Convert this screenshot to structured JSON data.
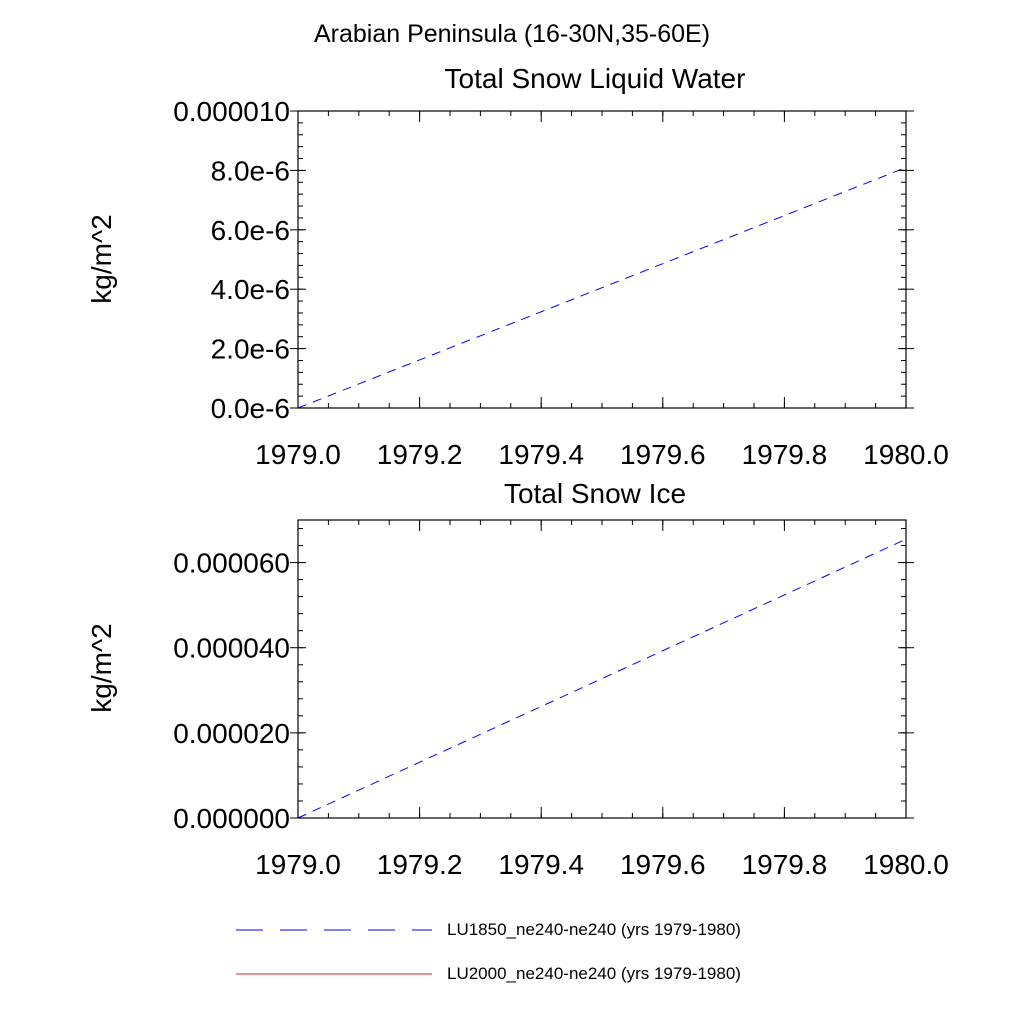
{
  "suptitle": "Arabian Peninsula (16-30N,35-60E)",
  "colors": {
    "LU1850": "#0000ff",
    "LU2000": "#d02020"
  },
  "legend": [
    {
      "key": "LU1850",
      "label": "LU1850_ne240-ne240 (yrs 1979-1980)",
      "style": "dashed"
    },
    {
      "key": "LU2000",
      "label": "LU2000_ne240-ne240 (yrs 1979-1980)",
      "style": "solid"
    }
  ],
  "chart_data": [
    {
      "type": "line",
      "title": "Total Snow Liquid Water",
      "ylabel": "kg/m^2",
      "xlim": [
        1979.0,
        1980.0
      ],
      "ylim": [
        0,
        1e-05
      ],
      "xticks": [
        1979.0,
        1979.2,
        1979.4,
        1979.6,
        1979.8,
        1980.0
      ],
      "xtick_labels": [
        "1979.0",
        "1979.2",
        "1979.4",
        "1979.6",
        "1979.8",
        "1980.0"
      ],
      "yticks": [
        0,
        2e-06,
        4e-06,
        6e-06,
        8e-06,
        1e-05
      ],
      "ytick_labels": [
        "0.0e-6",
        "2.0e-6",
        "4.0e-6",
        "6.0e-6",
        "8.0e-6",
        "0.000010"
      ],
      "series": [
        {
          "key": "LU1850",
          "x": [
            1979.0,
            1980.0
          ],
          "y": [
            0,
            8.1e-06
          ]
        }
      ]
    },
    {
      "type": "line",
      "title": "Total Snow Ice",
      "ylabel": "kg/m^2",
      "xlim": [
        1979.0,
        1980.0
      ],
      "ylim": [
        0,
        7e-05
      ],
      "xticks": [
        1979.0,
        1979.2,
        1979.4,
        1979.6,
        1979.8,
        1980.0
      ],
      "xtick_labels": [
        "1979.0",
        "1979.2",
        "1979.4",
        "1979.6",
        "1979.8",
        "1980.0"
      ],
      "yticks": [
        0,
        2e-05,
        4e-05,
        6e-05
      ],
      "ytick_labels": [
        "0.000000",
        "0.000020",
        "0.000040",
        "0.000060"
      ],
      "series": [
        {
          "key": "LU1850",
          "x": [
            1979.0,
            1980.0
          ],
          "y": [
            0,
            6.55e-05
          ]
        },
        {
          "key": "LU2000",
          "x": [
            1979.0,
            1980.0
          ],
          "y": [
            0,
            0
          ]
        }
      ]
    }
  ]
}
